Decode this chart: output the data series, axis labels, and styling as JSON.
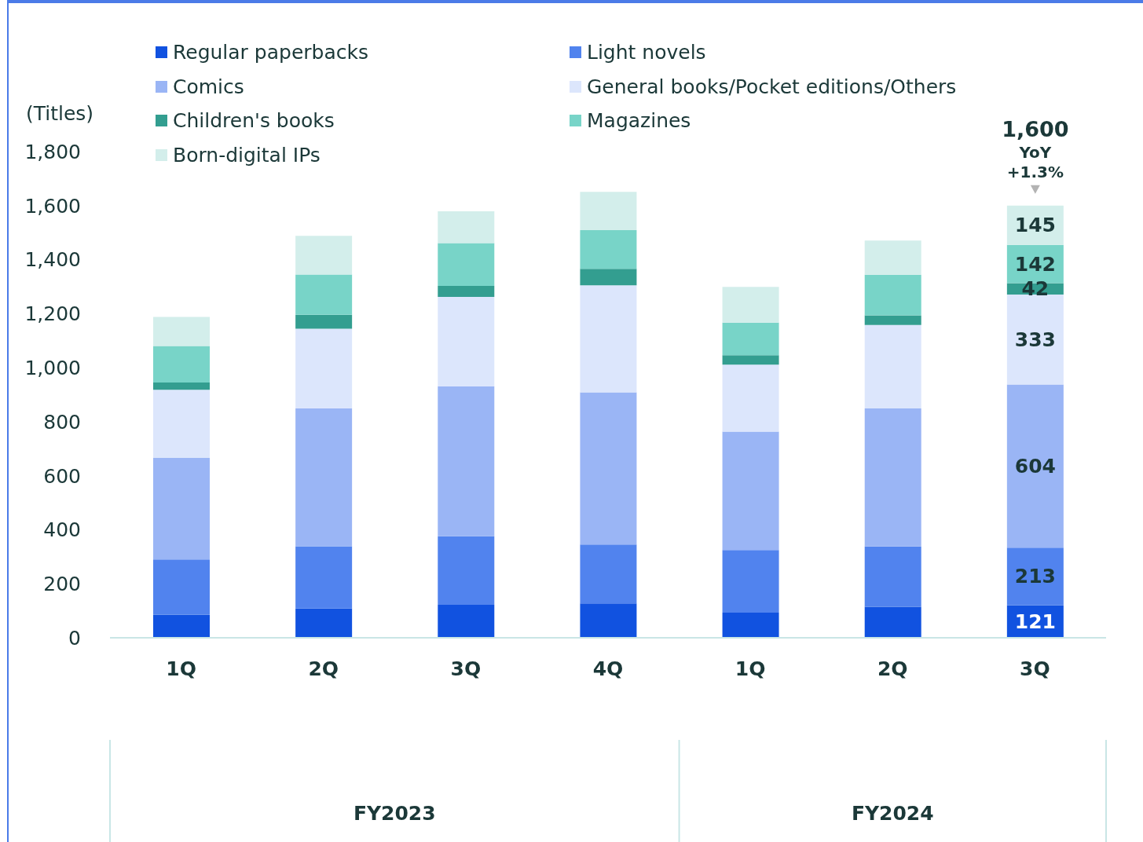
{
  "chart_data": {
    "type": "bar",
    "stacked": true,
    "ylabel": "(Titles)",
    "legend": "top",
    "categories": [
      "1Q",
      "2Q",
      "3Q",
      "4Q",
      "1Q",
      "2Q",
      "3Q"
    ],
    "ylim": [
      0,
      1800
    ],
    "yticks": [
      0,
      200,
      400,
      600,
      800,
      {
        "value": 1000,
        "label": "1,000"
      },
      {
        "value": 1200,
        "label": "1,200"
      },
      {
        "value": 1400,
        "label": "1,400"
      },
      {
        "value": 1600,
        "label": "1,600"
      },
      {
        "value": 1800,
        "label": "1,800"
      }
    ],
    "series": [
      {
        "name": "Regular paperbacks",
        "color": "#1152e0",
        "values": [
          86,
          108,
          122,
          127,
          93,
          115,
          121
        ],
        "value_labels": [
          null,
          null,
          null,
          null,
          null,
          null,
          "121"
        ]
      },
      {
        "name": "Light novels",
        "color": "#5183ee",
        "values": [
          204,
          231,
          254,
          218,
          232,
          223,
          213
        ],
        "value_labels": [
          null,
          null,
          null,
          null,
          null,
          null,
          "213"
        ]
      },
      {
        "name": "Comics",
        "color": "#9ab5f5",
        "values": [
          376,
          511,
          555,
          564,
          438,
          511,
          604
        ],
        "value_labels": [
          null,
          null,
          null,
          null,
          null,
          null,
          "604"
        ]
      },
      {
        "name": "General books/Pocket editions/Others",
        "color": "#dce6fc",
        "values": [
          252,
          294,
          331,
          396,
          248,
          309,
          333
        ],
        "value_labels": [
          null,
          null,
          null,
          null,
          null,
          null,
          "333"
        ]
      },
      {
        "name": "Children's books",
        "color": "#339e90",
        "values": [
          27,
          52,
          41,
          61,
          35,
          36,
          42
        ],
        "value_labels": [
          null,
          null,
          null,
          null,
          null,
          null,
          "42"
        ]
      },
      {
        "name": "Magazines",
        "color": "#78d4c8",
        "values": [
          135,
          149,
          158,
          143,
          121,
          150,
          142
        ],
        "value_labels": [
          null,
          null,
          null,
          null,
          null,
          null,
          "142"
        ]
      },
      {
        "name": "Born-digital IPs",
        "color": "#d3eeeb",
        "values": [
          108,
          143,
          118,
          142,
          132,
          127,
          145
        ],
        "value_labels": [
          null,
          null,
          null,
          null,
          null,
          null,
          "145"
        ]
      }
    ],
    "totals": [
      null,
      null,
      null,
      null,
      null,
      null,
      "1,600"
    ],
    "annotations": [
      "YoY",
      "+1.3%",
      "FY2023",
      "FY2024"
    ]
  }
}
